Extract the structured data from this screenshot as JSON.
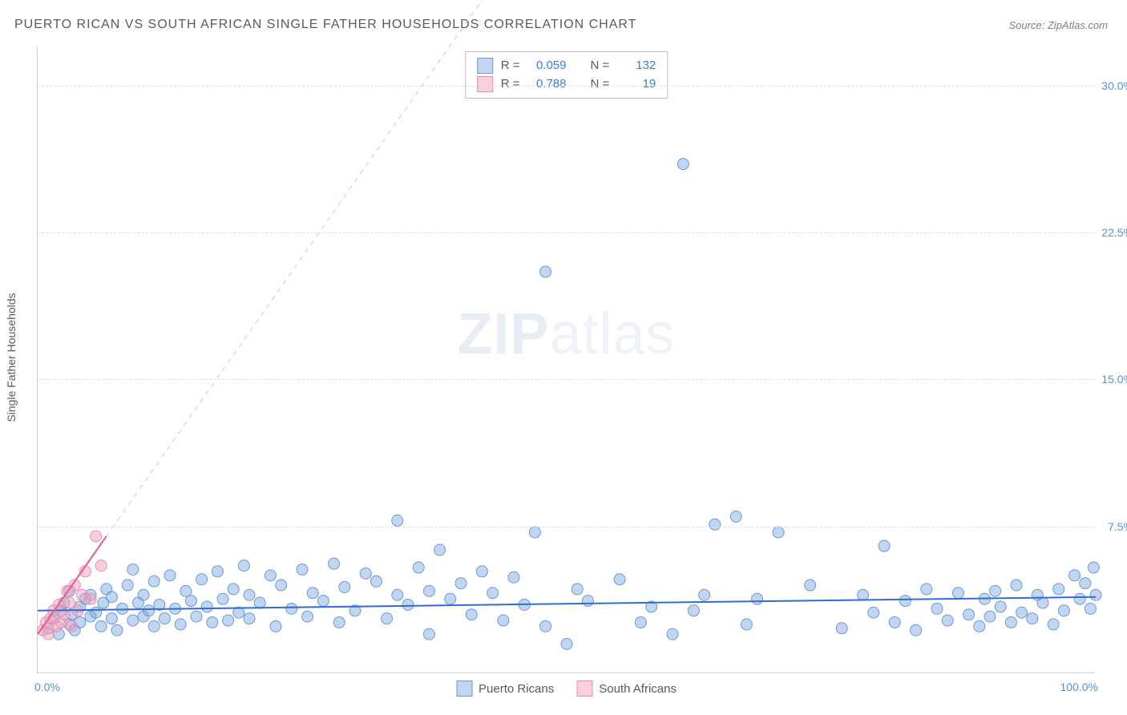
{
  "title": "PUERTO RICAN VS SOUTH AFRICAN SINGLE FATHER HOUSEHOLDS CORRELATION CHART",
  "source": "Source: ZipAtlas.com",
  "ylabel": "Single Father Households",
  "watermark_bold": "ZIP",
  "watermark_rest": "atlas",
  "chart": {
    "type": "scatter",
    "xlim": [
      0,
      100
    ],
    "ylim": [
      0,
      32
    ],
    "yticks": [
      7.5,
      15.0,
      22.5,
      30.0
    ],
    "ytick_labels": [
      "7.5%",
      "15.0%",
      "22.5%",
      "30.0%"
    ],
    "xtick_left": "0.0%",
    "xtick_right": "100.0%",
    "background_color": "#ffffff",
    "grid_color": "#e0e0e0",
    "series": {
      "blue": {
        "label": "Puerto Ricans",
        "fill": "rgba(120,165,225,0.45)",
        "stroke": "#6a9bd8",
        "marker_radius": 7,
        "trend": {
          "x1": 0,
          "y1": 3.2,
          "x2": 100,
          "y2": 3.9,
          "color": "#2e6fd0",
          "width": 2,
          "dash": "none"
        },
        "points": [
          [
            1,
            2.3
          ],
          [
            1.5,
            2.8
          ],
          [
            2,
            2.0
          ],
          [
            2.2,
            3.2
          ],
          [
            2.5,
            3.6
          ],
          [
            3,
            2.5
          ],
          [
            3,
            4.2
          ],
          [
            3.2,
            3.0
          ],
          [
            3.5,
            2.2
          ],
          [
            4,
            3.4
          ],
          [
            4,
            2.6
          ],
          [
            4.5,
            3.8
          ],
          [
            5,
            2.9
          ],
          [
            5,
            4.0
          ],
          [
            5.5,
            3.1
          ],
          [
            6,
            2.4
          ],
          [
            6.2,
            3.6
          ],
          [
            6.5,
            4.3
          ],
          [
            7,
            2.8
          ],
          [
            7,
            3.9
          ],
          [
            7.5,
            2.2
          ],
          [
            8,
            3.3
          ],
          [
            8.5,
            4.5
          ],
          [
            9,
            2.7
          ],
          [
            9,
            5.3
          ],
          [
            9.5,
            3.6
          ],
          [
            10,
            2.9
          ],
          [
            10,
            4.0
          ],
          [
            10.5,
            3.2
          ],
          [
            11,
            2.4
          ],
          [
            11,
            4.7
          ],
          [
            11.5,
            3.5
          ],
          [
            12,
            2.8
          ],
          [
            12.5,
            5.0
          ],
          [
            13,
            3.3
          ],
          [
            13.5,
            2.5
          ],
          [
            14,
            4.2
          ],
          [
            14.5,
            3.7
          ],
          [
            15,
            2.9
          ],
          [
            15.5,
            4.8
          ],
          [
            16,
            3.4
          ],
          [
            16.5,
            2.6
          ],
          [
            17,
            5.2
          ],
          [
            17.5,
            3.8
          ],
          [
            18,
            2.7
          ],
          [
            18.5,
            4.3
          ],
          [
            19,
            3.1
          ],
          [
            19.5,
            5.5
          ],
          [
            20,
            2.8
          ],
          [
            20,
            4.0
          ],
          [
            21,
            3.6
          ],
          [
            22,
            5.0
          ],
          [
            22.5,
            2.4
          ],
          [
            23,
            4.5
          ],
          [
            24,
            3.3
          ],
          [
            25,
            5.3
          ],
          [
            25.5,
            2.9
          ],
          [
            26,
            4.1
          ],
          [
            27,
            3.7
          ],
          [
            28,
            5.6
          ],
          [
            28.5,
            2.6
          ],
          [
            29,
            4.4
          ],
          [
            30,
            3.2
          ],
          [
            31,
            5.1
          ],
          [
            32,
            4.7
          ],
          [
            33,
            2.8
          ],
          [
            34,
            7.8
          ],
          [
            34,
            4.0
          ],
          [
            35,
            3.5
          ],
          [
            36,
            5.4
          ],
          [
            37,
            4.2
          ],
          [
            37,
            2.0
          ],
          [
            38,
            6.3
          ],
          [
            39,
            3.8
          ],
          [
            40,
            4.6
          ],
          [
            41,
            3.0
          ],
          [
            42,
            5.2
          ],
          [
            43,
            4.1
          ],
          [
            44,
            2.7
          ],
          [
            45,
            4.9
          ],
          [
            46,
            3.5
          ],
          [
            47,
            7.2
          ],
          [
            48,
            2.4
          ],
          [
            48,
            20.5
          ],
          [
            50,
            1.5
          ],
          [
            51,
            4.3
          ],
          [
            52,
            3.7
          ],
          [
            55,
            4.8
          ],
          [
            57,
            2.6
          ],
          [
            58,
            3.4
          ],
          [
            60,
            2.0
          ],
          [
            61,
            26.0
          ],
          [
            62,
            3.2
          ],
          [
            63,
            4.0
          ],
          [
            64,
            7.6
          ],
          [
            66,
            8.0
          ],
          [
            67,
            2.5
          ],
          [
            68,
            3.8
          ],
          [
            70,
            7.2
          ],
          [
            73,
            4.5
          ],
          [
            76,
            2.3
          ],
          [
            78,
            4.0
          ],
          [
            79,
            3.1
          ],
          [
            80,
            6.5
          ],
          [
            81,
            2.6
          ],
          [
            82,
            3.7
          ],
          [
            83,
            2.2
          ],
          [
            84,
            4.3
          ],
          [
            85,
            3.3
          ],
          [
            86,
            2.7
          ],
          [
            87,
            4.1
          ],
          [
            88,
            3.0
          ],
          [
            89,
            2.4
          ],
          [
            89.5,
            3.8
          ],
          [
            90,
            2.9
          ],
          [
            90.5,
            4.2
          ],
          [
            91,
            3.4
          ],
          [
            92,
            2.6
          ],
          [
            92.5,
            4.5
          ],
          [
            93,
            3.1
          ],
          [
            94,
            2.8
          ],
          [
            94.5,
            4.0
          ],
          [
            95,
            3.6
          ],
          [
            96,
            2.5
          ],
          [
            96.5,
            4.3
          ],
          [
            97,
            3.2
          ],
          [
            98,
            5.0
          ],
          [
            98.5,
            3.8
          ],
          [
            99,
            4.6
          ],
          [
            99.5,
            3.3
          ],
          [
            99.8,
            5.4
          ],
          [
            100,
            4.0
          ]
        ]
      },
      "pink": {
        "label": "South Africans",
        "fill": "rgba(245,160,185,0.50)",
        "stroke": "#e98fb0",
        "marker_radius": 7,
        "trend": {
          "x1": 0,
          "y1": 2.0,
          "x2": 6.5,
          "y2": 7.0,
          "color": "#e85a8a",
          "width": 2,
          "dash": "none"
        },
        "trend_ext": {
          "x1": 6.5,
          "y1": 7.0,
          "x2": 48,
          "y2": 39,
          "color": "#f0b8c8",
          "width": 1,
          "dash": "6 6"
        },
        "points": [
          [
            0.5,
            2.2
          ],
          [
            0.8,
            2.6
          ],
          [
            1.0,
            2.0
          ],
          [
            1.2,
            2.8
          ],
          [
            1.5,
            3.2
          ],
          [
            1.8,
            2.4
          ],
          [
            2.0,
            3.5
          ],
          [
            2.2,
            2.6
          ],
          [
            2.5,
            3.0
          ],
          [
            2.8,
            4.2
          ],
          [
            3.0,
            3.6
          ],
          [
            3.2,
            2.4
          ],
          [
            3.5,
            4.5
          ],
          [
            3.8,
            3.2
          ],
          [
            4.2,
            4.0
          ],
          [
            4.5,
            5.2
          ],
          [
            5.0,
            3.8
          ],
          [
            5.5,
            7.0
          ],
          [
            6.0,
            5.5
          ]
        ]
      }
    }
  },
  "corr_legend": [
    {
      "swatch_fill": "rgba(120,165,225,0.45)",
      "swatch_stroke": "#6a9bd8",
      "r": "0.059",
      "n": "132"
    },
    {
      "swatch_fill": "rgba(245,160,185,0.50)",
      "swatch_stroke": "#e98fb0",
      "r": "0.788",
      "n": "19"
    }
  ],
  "corr_labels": {
    "r": "R =",
    "n": "N ="
  }
}
